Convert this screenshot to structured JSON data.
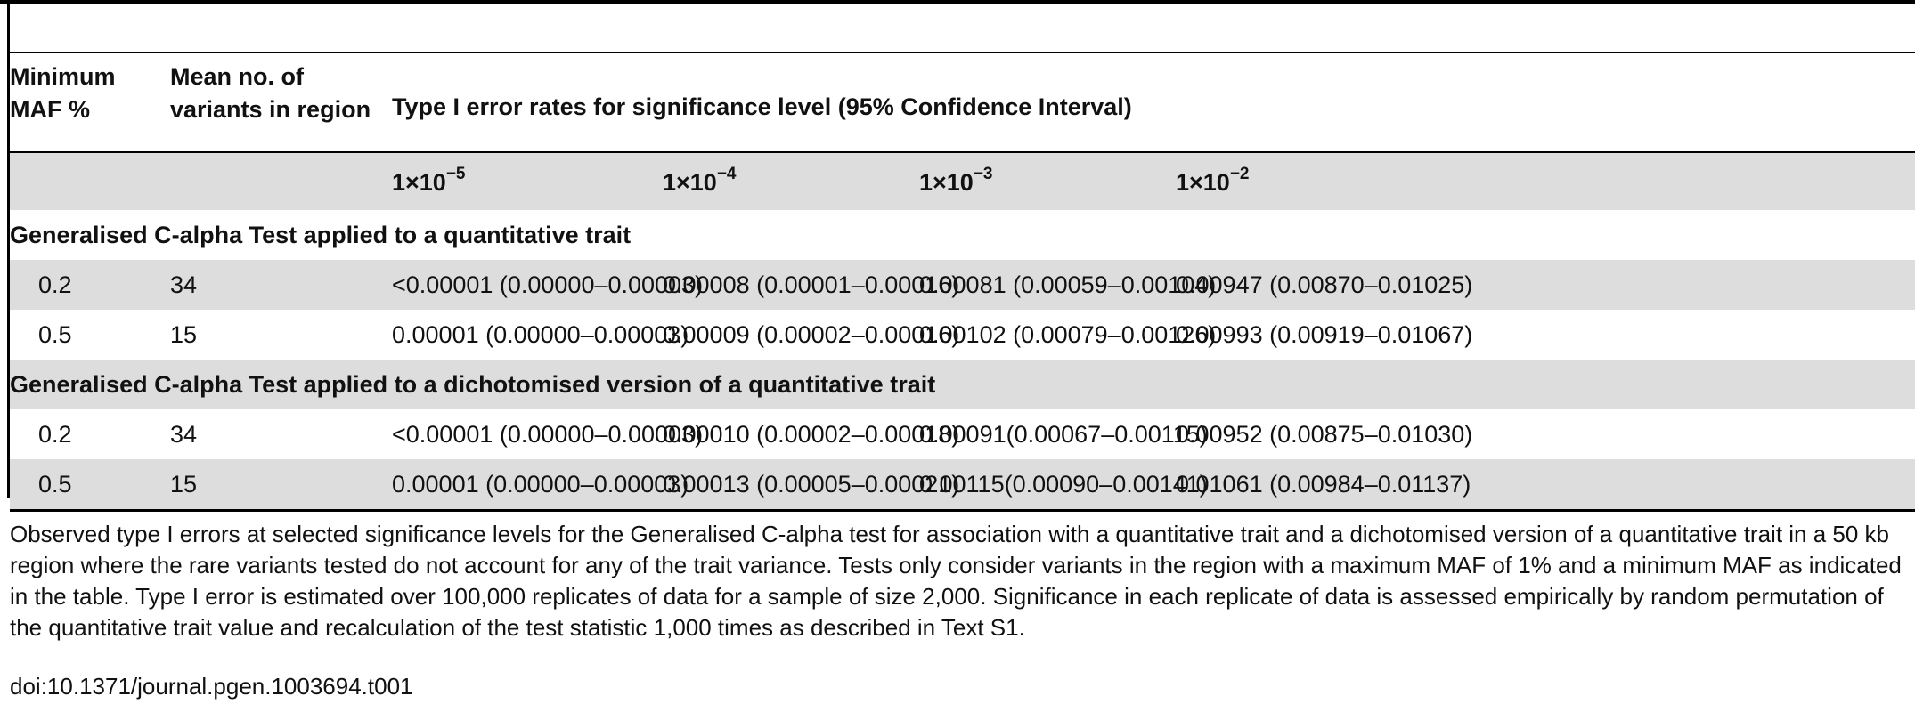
{
  "table": {
    "header": {
      "col1": "Minimum MAF %",
      "col2": "Mean no. of variants in region",
      "span": "Type I error rates for significance level (95% Confidence Interval)"
    },
    "levels": [
      {
        "base": "1×10",
        "exp": "−5"
      },
      {
        "base": "1×10",
        "exp": "−4"
      },
      {
        "base": "1×10",
        "exp": "−3"
      },
      {
        "base": "1×10",
        "exp": "−2"
      }
    ],
    "sections": [
      {
        "title": "Generalised C-alpha Test applied to a quantitative trait",
        "rows": [
          {
            "maf": "0.2",
            "variants": "34",
            "values": [
              "<0.00001 (0.00000–0.00003)",
              "0.00008 (0.00001–0.00016)",
              "0.00081 (0.00059–0.00104)",
              "0.00947 (0.00870–0.01025)"
            ]
          },
          {
            "maf": "0.5",
            "variants": "15",
            "values": [
              "0.00001 (0.00000–0.00003)",
              "0.00009 (0.00002–0.00016)",
              "0.00102 (0.00079–0.00126)",
              "0.00993 (0.00919–0.01067)"
            ]
          }
        ]
      },
      {
        "title": "Generalised C-alpha Test applied to a dichotomised version of a quantitative trait",
        "rows": [
          {
            "maf": "0.2",
            "variants": "34",
            "values": [
              "<0.00001 (0.00000–0.00003)",
              "0.00010 (0.00002–0.00018)",
              "0.00091(0.00067–0.00115)",
              "0.00952 (0.00875–0.01030)"
            ]
          },
          {
            "maf": "0.5",
            "variants": "15",
            "values": [
              "0.00001 (0.00000–0.00003)",
              "0.00013 (0.00005–0.00021)",
              "0.00115(0.00090–0.00141)",
              "0.01061 (0.00984–0.01137)"
            ]
          }
        ]
      }
    ]
  },
  "caption": "Observed type I errors at selected significance levels for the Generalised C-alpha test for association with a quantitative trait and a dichotomised version of a quantitative trait in a 50 kb region where the rare variants tested do not account for any of the trait variance. Tests only consider variants in the region with a maximum MAF of 1% and a minimum MAF as indicated in the table. Type I error is estimated over 100,000 replicates of data for a sample of size 2,000. Significance in each replicate of data is assessed empirically by random permutation of the quantitative trait value and recalculation of the test statistic 1,000 times as described in Text S1.",
  "doi": "doi:10.1371/journal.pgen.1003694.t001"
}
